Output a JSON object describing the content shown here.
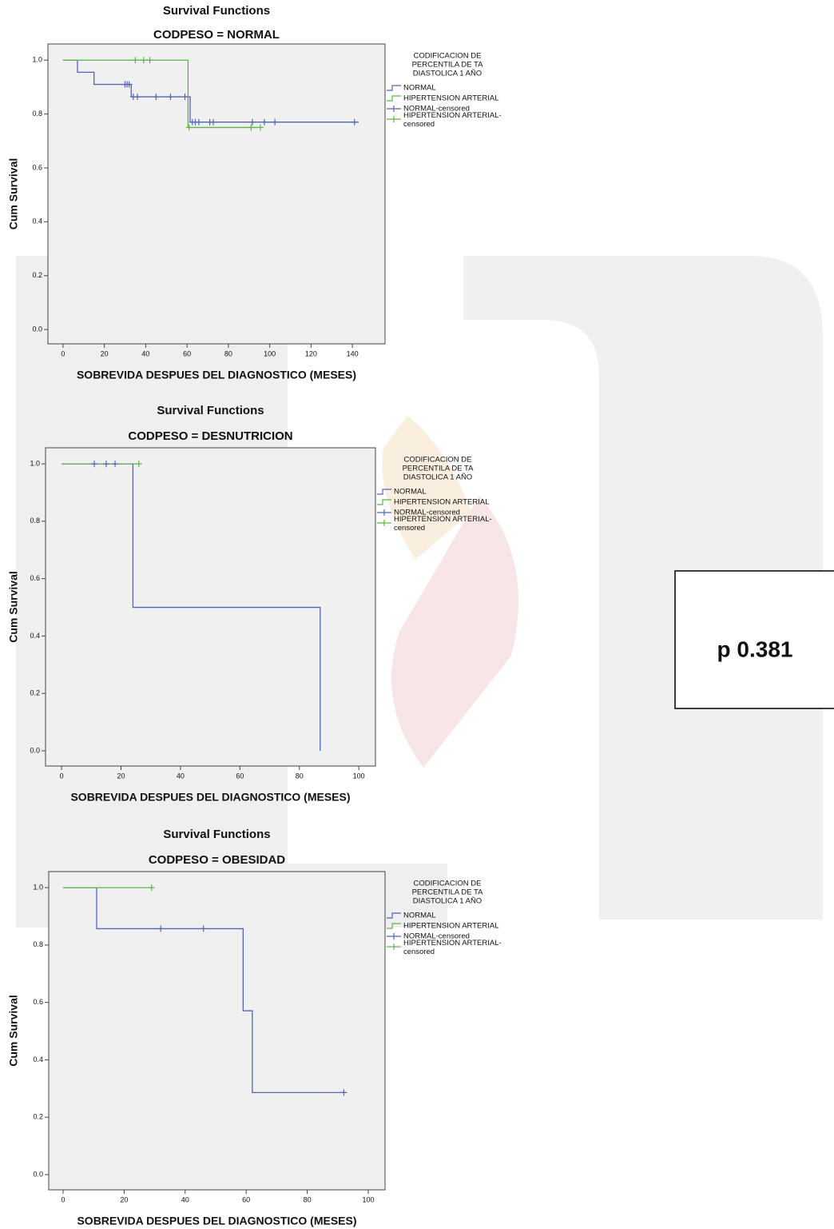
{
  "chart_data": [
    {
      "type": "line",
      "title": "Survival Functions",
      "subtitle": "CODPESO = NORMAL",
      "x_label": "SOBREVIDA DESPUES DEL DIAGNOSTICO (MESES)",
      "y_label": "Cum Survival",
      "legend_title": [
        "CODIFICACION DE",
        "PERCENTILA DE TA",
        "DIASTOLICA 1 AÑO"
      ],
      "xlim": [
        -7.3,
        155.8
      ],
      "ylim": [
        -0.053,
        1.06
      ],
      "xticks": [
        0,
        20,
        40,
        60,
        80,
        100,
        120,
        140
      ],
      "yticks": [
        {
          "value": 0,
          "label": "0.0"
        },
        0.2,
        0.4,
        0.6,
        0.8,
        {
          "value": 1,
          "label": "1.0"
        }
      ],
      "series": [
        {
          "name": "NORMAL",
          "style": "step",
          "color": "#5465b0",
          "x": [
            0,
            7,
            15,
            33,
            61.5,
            143
          ],
          "values": [
            1,
            0.955,
            0.91,
            0.864,
            0.77,
            0.77
          ]
        },
        {
          "name": "HIPERTENSION ARTERIAL",
          "style": "step",
          "color": "#5cb54c",
          "x": [
            0,
            60.5,
            95.5
          ],
          "values": [
            1,
            0.75,
            0.75
          ]
        },
        {
          "name": "NORMAL-censored",
          "style": "censored",
          "color": "#5465b0",
          "x": [
            30,
            31,
            32,
            34,
            36,
            45,
            52,
            59,
            62.6,
            64,
            65.7,
            71,
            72.7,
            91.6,
            97.4,
            102.5,
            141
          ],
          "values": [
            0.91,
            0.91,
            0.91,
            0.864,
            0.864,
            0.864,
            0.864,
            0.864,
            0.77,
            0.77,
            0.77,
            0.77,
            0.77,
            0.77,
            0.77,
            0.77,
            0.77
          ]
        },
        {
          "name": "HIPERTENSION ARTERIAL-censored",
          "style": "censored",
          "color": "#5cb54c",
          "x": [
            35,
            39,
            42,
            61,
            91,
            95.5
          ],
          "values": [
            1,
            1,
            1,
            0.75,
            0.75,
            0.75
          ]
        }
      ]
    },
    {
      "type": "line",
      "title": "Survival Functions",
      "subtitle": "CODPESO = DESNUTRICION",
      "x_label": "SOBREVIDA DESPUES DEL DIAGNOSTICO (MESES)",
      "y_label": "Cum Survival",
      "legend_title": [
        "CODIFICACION DE",
        "PERCENTILA DE TA",
        "DIASTOLICA 1 AÑO"
      ],
      "xlim": [
        -5.4,
        105.6
      ],
      "ylim": [
        -0.053,
        1.056
      ],
      "xticks": [
        0,
        20,
        40,
        60,
        80,
        100
      ],
      "yticks": [
        {
          "value": 0,
          "label": "0.0"
        },
        0.2,
        0.4,
        0.6,
        0.8,
        {
          "value": 1,
          "label": "1.0"
        }
      ],
      "series": [
        {
          "name": "NORMAL",
          "style": "step",
          "color": "#5465b0",
          "x": [
            0,
            24,
            87
          ],
          "values": [
            1,
            0.5,
            0
          ]
        },
        {
          "name": "HIPERTENSION ARTERIAL",
          "style": "step",
          "color": "#5cb54c",
          "x": [
            0,
            26
          ],
          "values": [
            1,
            1
          ]
        },
        {
          "name": "NORMAL-censored",
          "style": "censored",
          "color": "#5465b0",
          "x": [
            11,
            15,
            18
          ],
          "values": [
            1,
            1,
            1
          ]
        },
        {
          "name": "HIPERTENSION ARTERIAL-censored",
          "style": "censored",
          "color": "#5cb54c",
          "x": [
            26
          ],
          "values": [
            1
          ]
        }
      ]
    },
    {
      "type": "line",
      "title": "Survival Functions",
      "subtitle": "CODPESO = OBESIDAD",
      "x_label": "SOBREVIDA DESPUES DEL DIAGNOSTICO (MESES)",
      "y_label": "Cum Survival",
      "legend_title": [
        "CODIFICACION DE",
        "PERCENTILA DE TA",
        "DIASTOLICA 1 AÑO"
      ],
      "xlim": [
        -4.7,
        105.5
      ],
      "ylim": [
        -0.053,
        1.056
      ],
      "xticks": [
        0,
        20,
        40,
        60,
        80,
        100
      ],
      "yticks": [
        {
          "value": 0,
          "label": "0.0"
        },
        0.2,
        0.4,
        0.6,
        0.8,
        {
          "value": 1,
          "label": "1.0"
        }
      ],
      "series": [
        {
          "name": "NORMAL",
          "style": "step",
          "color": "#5465b0",
          "x": [
            0,
            11,
            59,
            62,
            92
          ],
          "values": [
            1,
            0.857,
            0.571,
            0.286,
            0.286
          ]
        },
        {
          "name": "HIPERTENSION ARTERIAL",
          "style": "step",
          "color": "#5cb54c",
          "x": [
            0,
            29
          ],
          "values": [
            1,
            1
          ]
        },
        {
          "name": "NORMAL-censored",
          "style": "censored",
          "color": "#5465b0",
          "x": [
            32,
            46,
            92
          ],
          "values": [
            0.857,
            0.857,
            0.286
          ]
        },
        {
          "name": "HIPERTENSION ARTERIAL-censored",
          "style": "censored",
          "color": "#5cb54c",
          "x": [
            29
          ],
          "values": [
            1
          ]
        }
      ]
    }
  ],
  "annotation": "p 0.381"
}
